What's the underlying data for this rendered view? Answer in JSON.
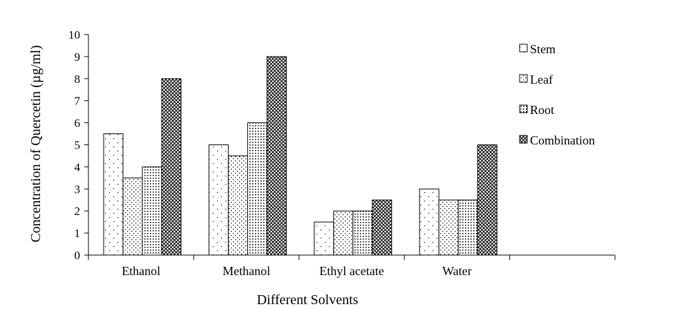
{
  "chart_data": {
    "type": "bar",
    "title": "",
    "xlabel": "Different Solvents",
    "ylabel": "Concentration of Quercetin (µg/ml)",
    "categories": [
      "Ethanol",
      "Methanol",
      "Ethyl acetate",
      "Water",
      ""
    ],
    "ylim": [
      0,
      10
    ],
    "yticks": [
      "0",
      "1",
      "2",
      "3",
      "4",
      "5",
      "6",
      "7",
      "8",
      "9",
      "10"
    ],
    "grid": false,
    "legend_position": "right",
    "series": [
      {
        "name": "Stem",
        "values": [
          5.5,
          5.0,
          1.5,
          3.0,
          null
        ],
        "pattern": "sparse-dots"
      },
      {
        "name": "Leaf",
        "values": [
          3.5,
          4.5,
          2.0,
          2.5,
          null
        ],
        "pattern": "medium-dots"
      },
      {
        "name": "Root",
        "values": [
          4.0,
          6.0,
          2.0,
          2.5,
          null
        ],
        "pattern": "dense-dots"
      },
      {
        "name": "Combination",
        "values": [
          8.0,
          9.0,
          2.5,
          5.0,
          null
        ],
        "pattern": "crosshatch"
      }
    ],
    "colors": {
      "bar_stroke": "#000000",
      "bar_fill": "#ffffff",
      "pattern_ink": "#000000"
    }
  }
}
